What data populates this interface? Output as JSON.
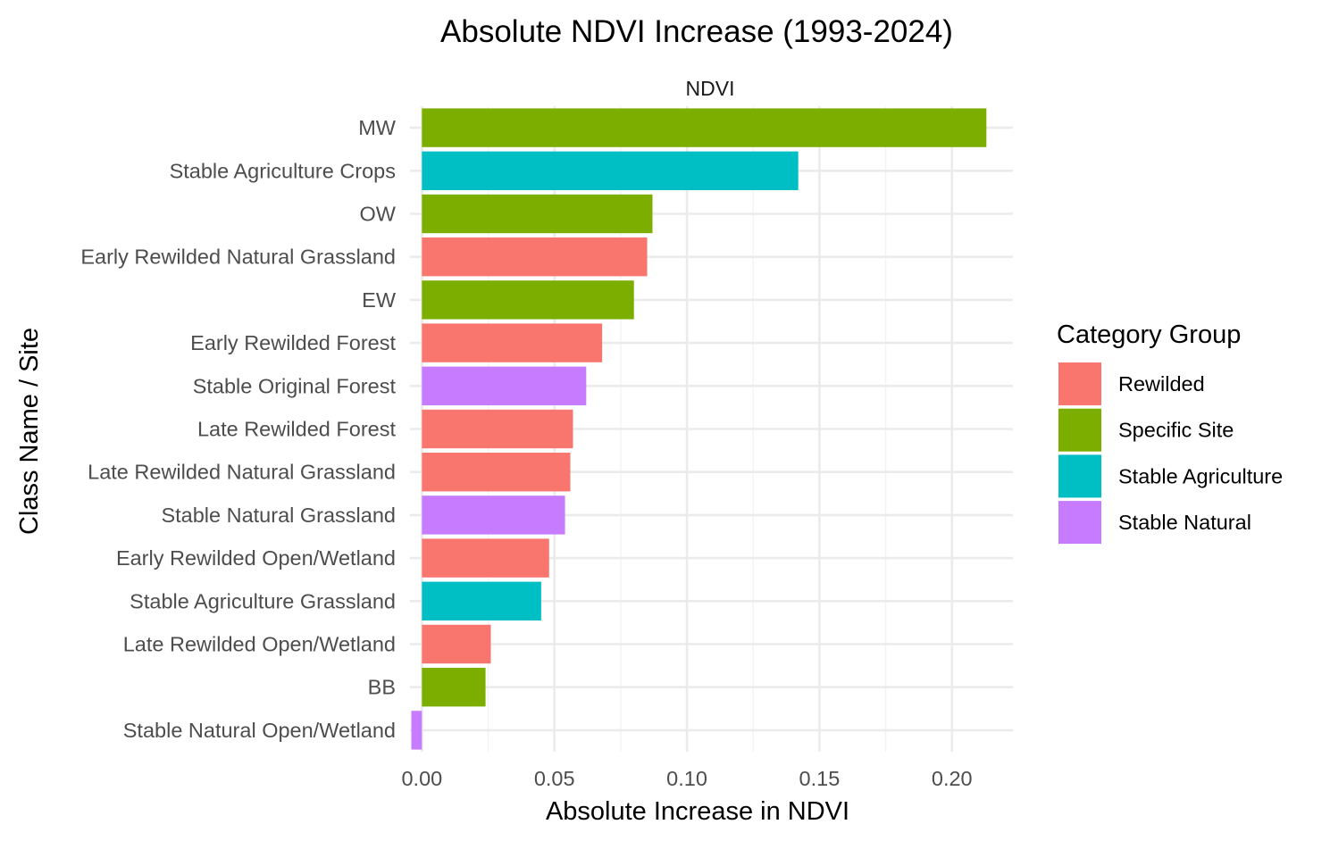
{
  "chart_data": {
    "type": "bar",
    "orientation": "horizontal",
    "title": "Absolute NDVI Increase (1993-2024)",
    "facet_label": "NDVI",
    "xlabel": "Absolute Increase in NDVI",
    "ylabel": "Class Name / Site",
    "xlim": [
      -0.0045,
      0.223
    ],
    "x_ticks": [
      0.0,
      0.05,
      0.1,
      0.15,
      0.2
    ],
    "x_tick_labels": [
      "0.00",
      "0.05",
      "0.10",
      "0.15",
      "0.20"
    ],
    "grid": true,
    "legend": {
      "title": "Category Group",
      "placement": "right",
      "entries": [
        {
          "label": "Rewilded",
          "color": "#F8766D"
        },
        {
          "label": "Specific Site",
          "color": "#7CAE00"
        },
        {
          "label": "Stable Agriculture",
          "color": "#00BFC4"
        },
        {
          "label": "Stable Natural",
          "color": "#C77CFF"
        }
      ]
    },
    "bars": [
      {
        "category": "MW",
        "value": 0.213,
        "group": "Specific Site"
      },
      {
        "category": "Stable Agriculture Crops",
        "value": 0.142,
        "group": "Stable Agriculture"
      },
      {
        "category": "OW",
        "value": 0.087,
        "group": "Specific Site"
      },
      {
        "category": "Early Rewilded Natural Grassland",
        "value": 0.085,
        "group": "Rewilded"
      },
      {
        "category": "EW",
        "value": 0.08,
        "group": "Specific Site"
      },
      {
        "category": "Early Rewilded Forest",
        "value": 0.068,
        "group": "Rewilded"
      },
      {
        "category": "Stable Original Forest",
        "value": 0.062,
        "group": "Stable Natural"
      },
      {
        "category": "Late Rewilded Forest",
        "value": 0.057,
        "group": "Rewilded"
      },
      {
        "category": "Late Rewilded Natural Grassland",
        "value": 0.056,
        "group": "Rewilded"
      },
      {
        "category": "Stable Natural Grassland",
        "value": 0.054,
        "group": "Stable Natural"
      },
      {
        "category": "Early Rewilded Open/Wetland",
        "value": 0.048,
        "group": "Rewilded"
      },
      {
        "category": "Stable Agriculture Grassland",
        "value": 0.045,
        "group": "Stable Agriculture"
      },
      {
        "category": "Late Rewilded Open/Wetland",
        "value": 0.026,
        "group": "Rewilded"
      },
      {
        "category": "BB",
        "value": 0.024,
        "group": "Specific Site"
      },
      {
        "category": "Stable Natural Open/Wetland",
        "value": -0.004,
        "group": "Stable Natural"
      }
    ]
  }
}
